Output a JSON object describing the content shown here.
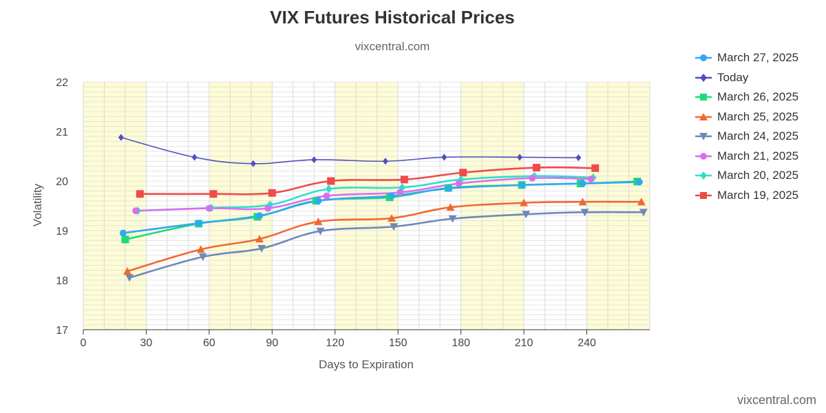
{
  "chart_data": {
    "type": "line",
    "title": "VIX Futures Historical Prices",
    "subtitle": "vixcentral.com",
    "xlabel": "Days to Expiration",
    "ylabel": "Volatility",
    "xlim": [
      0,
      270
    ],
    "ylim": [
      17,
      22
    ],
    "xticks": [
      0,
      30,
      60,
      90,
      120,
      150,
      180,
      210,
      240
    ],
    "yticks": [
      17,
      18,
      19,
      20,
      21,
      22
    ],
    "grid": true,
    "legend_position": "right",
    "series": [
      {
        "name": "March 27, 2025",
        "color": "#2fa9ef",
        "marker": "circle",
        "x": [
          19,
          55,
          84,
          112,
          147,
          174,
          209,
          238,
          265
        ],
        "y": [
          18.95,
          19.15,
          19.3,
          19.6,
          19.7,
          19.85,
          19.92,
          19.95,
          19.98
        ]
      },
      {
        "name": "Today",
        "color": "#5050c0",
        "marker": "diamond",
        "x": [
          18,
          53,
          81,
          110,
          144,
          172,
          208,
          236
        ],
        "y": [
          20.88,
          20.48,
          20.35,
          20.43,
          20.4,
          20.48,
          20.48,
          20.47
        ]
      },
      {
        "name": "March 26, 2025",
        "color": "#1ed97a",
        "marker": "square",
        "x": [
          20,
          55,
          83,
          111,
          146,
          174,
          209,
          237,
          264
        ],
        "y": [
          18.82,
          19.14,
          19.28,
          19.6,
          19.67,
          19.86,
          19.92,
          19.95,
          19.99
        ]
      },
      {
        "name": "March 25, 2025",
        "color": "#f2682e",
        "marker": "triangle",
        "x": [
          21,
          56,
          84,
          112,
          147,
          175,
          210,
          238,
          266
        ],
        "y": [
          18.18,
          18.62,
          18.83,
          19.18,
          19.25,
          19.47,
          19.56,
          19.58,
          19.58
        ]
      },
      {
        "name": "March 24, 2025",
        "color": "#6f88b8",
        "marker": "triangle-down",
        "x": [
          22,
          57,
          85,
          113,
          148,
          176,
          211,
          239,
          267
        ],
        "y": [
          18.05,
          18.47,
          18.64,
          18.99,
          19.08,
          19.24,
          19.33,
          19.37,
          19.37
        ]
      },
      {
        "name": "March 21, 2025",
        "color": "#d86ff0",
        "marker": "circle",
        "x": [
          25,
          60,
          88,
          116,
          151,
          179,
          214,
          242
        ],
        "y": [
          19.4,
          19.45,
          19.45,
          19.7,
          19.77,
          19.95,
          20.06,
          20.04
        ]
      },
      {
        "name": "March 20, 2025",
        "color": "#2ee0c8",
        "marker": "diamond",
        "x": [
          26,
          61,
          89,
          117,
          152,
          180,
          215,
          243
        ],
        "y": [
          19.4,
          19.46,
          19.52,
          19.84,
          19.87,
          20.03,
          20.1,
          20.07
        ]
      },
      {
        "name": "March 19, 2025",
        "color": "#f04a4a",
        "marker": "square",
        "x": [
          27,
          62,
          90,
          118,
          153,
          181,
          216,
          244
        ],
        "y": [
          19.74,
          19.74,
          19.76,
          20.0,
          20.03,
          20.17,
          20.27,
          20.26
        ]
      }
    ],
    "shaded_x_bands": [
      [
        0,
        30
      ],
      [
        60,
        90
      ],
      [
        120,
        150
      ],
      [
        180,
        210
      ],
      [
        240,
        270
      ]
    ],
    "band_color": "#fdfcd4"
  },
  "watermark": "vixcentral.com"
}
